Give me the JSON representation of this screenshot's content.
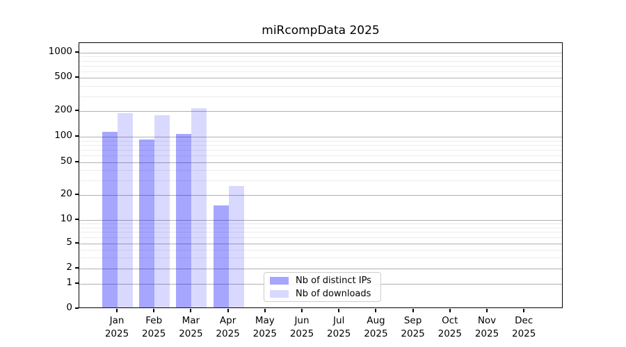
{
  "title": "miRcompData 2025",
  "year": "2025",
  "colors": {
    "distinct_ips_bar": "rgba(0,0,255,0.35)",
    "downloads_bar": "rgba(0,0,255,0.15)",
    "distinct_ips_hex": "#a6a6ff",
    "downloads_hex": "#d9d9ff",
    "major_gridline": "#b0b0b0",
    "minor_gridline": "#ececec",
    "axis": "#000000",
    "legend_border": "#cccccc"
  },
  "legend": {
    "items": [
      {
        "label": "Nb of distinct IPs",
        "color": "rgba(0,0,255,0.35)"
      },
      {
        "label": "Nb of downloads",
        "color": "rgba(0,0,255,0.15)"
      }
    ]
  },
  "chart_data": {
    "type": "bar",
    "title": "miRcompData 2025",
    "categories": [
      "Jan 2025",
      "Feb 2025",
      "Mar 2025",
      "Apr 2025",
      "May 2025",
      "Jun 2025",
      "Jul 2025",
      "Aug 2025",
      "Sep 2025",
      "Oct 2025",
      "Nov 2025",
      "Dec 2025"
    ],
    "xtick_months": [
      "Jan",
      "Feb",
      "Mar",
      "Apr",
      "May",
      "Jun",
      "Jul",
      "Aug",
      "Sep",
      "Oct",
      "Nov",
      "Dec"
    ],
    "xtick_year": "2025",
    "series": [
      {
        "name": "Nb of distinct IPs",
        "color": "rgba(0,0,255,0.35)",
        "values": [
          115,
          93,
          108,
          15,
          null,
          null,
          null,
          null,
          null,
          null,
          null,
          null
        ]
      },
      {
        "name": "Nb of downloads",
        "color": "rgba(0,0,255,0.15)",
        "values": [
          188,
          180,
          214,
          26,
          null,
          null,
          null,
          null,
          null,
          null,
          null,
          null
        ]
      }
    ],
    "xlabel": "",
    "ylabel": "",
    "yscale": "symlog",
    "ytick_values": [
      0,
      1,
      2,
      5,
      10,
      20,
      50,
      100,
      200,
      500,
      1000
    ],
    "ytick_labels": [
      "0",
      "1",
      "2",
      "5",
      "10",
      "20",
      "50",
      "100",
      "200",
      "500",
      "1000"
    ],
    "ylim": [
      0,
      1300
    ],
    "grid": true,
    "legend_position": "lower center"
  }
}
